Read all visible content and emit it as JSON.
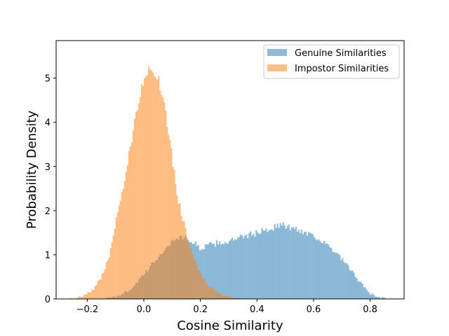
{
  "chart_data": {
    "type": "bar",
    "subtype": "overlapping-histogram",
    "title": "",
    "xlabel": "Cosine Similarity",
    "ylabel": "Probability Density",
    "xlim": [
      -0.31,
      0.92
    ],
    "ylim": [
      0,
      5.85
    ],
    "x_ticks": [
      -0.2,
      0.0,
      0.2,
      0.4,
      0.6,
      0.8
    ],
    "x_tick_labels": [
      "−0.2",
      "0.0",
      "0.2",
      "0.4",
      "0.6",
      "0.8"
    ],
    "y_ticks": [
      0,
      1,
      2,
      3,
      4,
      5
    ],
    "y_tick_labels": [
      "0",
      "1",
      "2",
      "3",
      "4",
      "5"
    ],
    "bin_width": 0.005,
    "legend_position": "top-right",
    "grid": false,
    "series": [
      {
        "name": "Genuine Similarities",
        "color": "#1f77b4",
        "alpha": 0.5,
        "description_points": {
          "x": [
            -0.14,
            -0.1,
            -0.05,
            0.0,
            0.05,
            0.1,
            0.12,
            0.15,
            0.18,
            0.2,
            0.25,
            0.3,
            0.35,
            0.4,
            0.45,
            0.48,
            0.5,
            0.55,
            0.6,
            0.65,
            0.7,
            0.75,
            0.78,
            0.8,
            0.83,
            0.86
          ],
          "density": [
            0.0,
            0.05,
            0.2,
            0.55,
            0.95,
            1.3,
            1.4,
            1.38,
            1.25,
            1.15,
            1.25,
            1.3,
            1.4,
            1.5,
            1.6,
            1.68,
            1.65,
            1.55,
            1.45,
            1.2,
            0.9,
            0.5,
            0.25,
            0.12,
            0.04,
            0.0
          ]
        }
      },
      {
        "name": "Impostor Similarities",
        "color": "#ff7f0e",
        "alpha": 0.5,
        "description_points": {
          "x": [
            -0.26,
            -0.22,
            -0.18,
            -0.15,
            -0.12,
            -0.1,
            -0.07,
            -0.05,
            -0.02,
            0.0,
            0.02,
            0.05,
            0.08,
            0.1,
            0.12,
            0.15,
            0.18,
            0.2,
            0.22,
            0.25,
            0.28,
            0.32,
            0.36
          ],
          "density": [
            0.0,
            0.05,
            0.2,
            0.5,
            1.0,
            1.7,
            2.6,
            3.4,
            4.4,
            5.0,
            5.3,
            5.0,
            4.1,
            3.2,
            2.3,
            1.5,
            0.9,
            0.55,
            0.35,
            0.2,
            0.08,
            0.02,
            0.0
          ]
        }
      }
    ]
  }
}
